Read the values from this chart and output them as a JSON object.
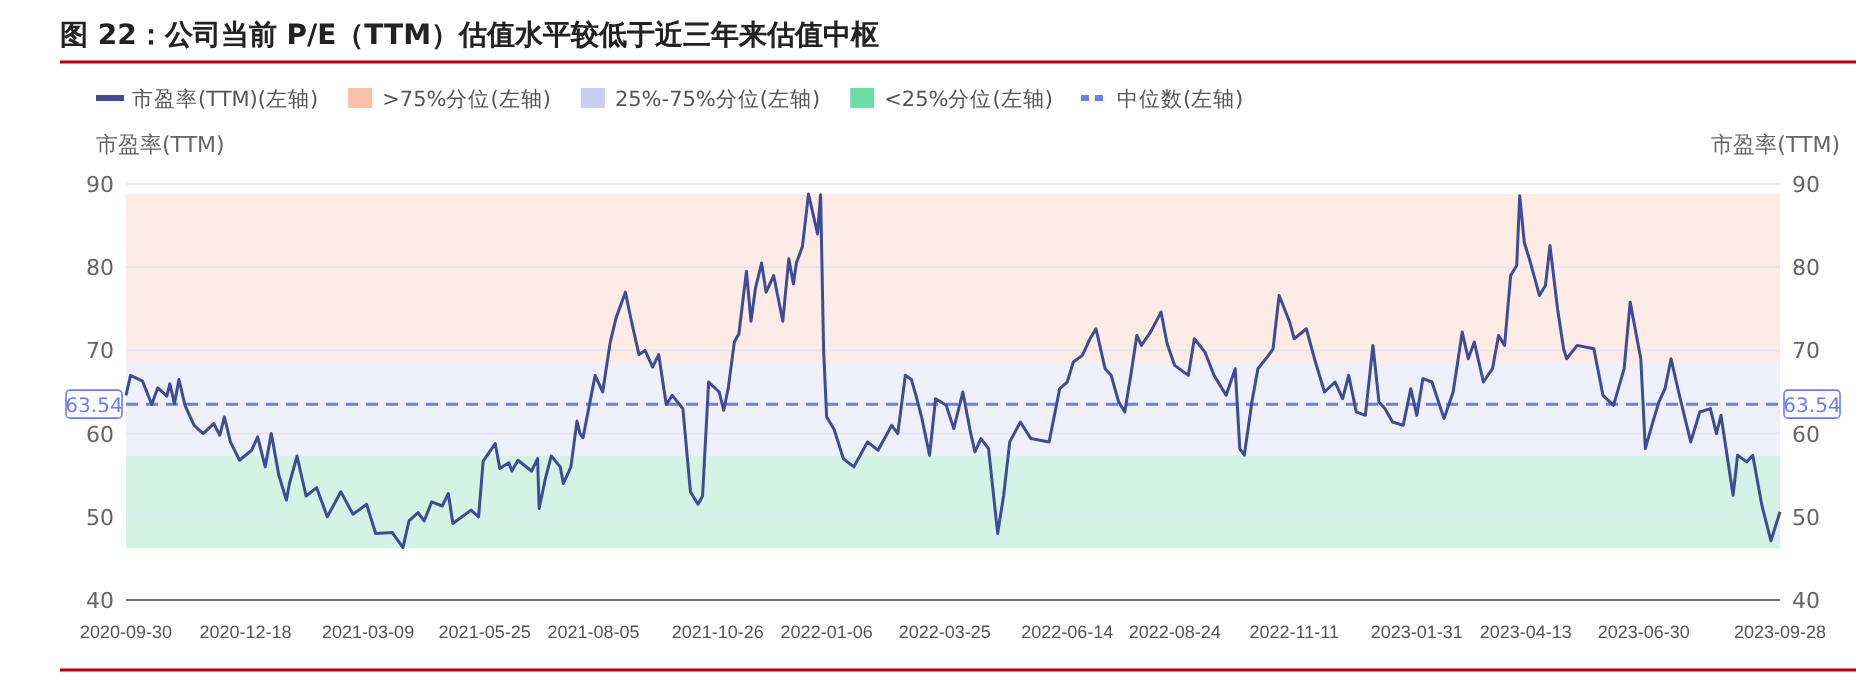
{
  "chart_data": {
    "type": "line",
    "title": "图 22：公司当前 P/E（TTM）估值水平较低于近三年来估值中枢",
    "ylabel": "市盈率(TTM)",
    "y2label": "市盈率(TTM)",
    "xlim": [
      "2020-09-30",
      "2023-09-28"
    ],
    "xticks": [
      {
        "value": "2020-09-30",
        "label": "2020-09-30"
      },
      {
        "value": "2020-12-18",
        "label": "2020-12-18"
      },
      {
        "value": "2021-03-09",
        "label": "2021-03-09"
      },
      {
        "value": "2021-05-25",
        "label": "2021-05-25"
      },
      {
        "value": "2021-08-05",
        "label": "2021-08-05"
      },
      {
        "value": "2021-10-26",
        "label": "2021-10-26"
      },
      {
        "value": "2022-01-06",
        "label": "2022-01-06"
      },
      {
        "value": "2022-03-25",
        "label": "2022-03-25"
      },
      {
        "value": "2022-06-14",
        "label": "2022-06-14"
      },
      {
        "value": "2022-08-24",
        "label": "2022-08-24"
      },
      {
        "value": "2022-11-11",
        "label": "2022-11-11"
      },
      {
        "value": "2023-01-31",
        "label": "2023-01-31"
      },
      {
        "value": "2023-04-13",
        "label": "2023-04-13"
      },
      {
        "value": "2023-06-30",
        "label": "2023-06-30"
      },
      {
        "value": "2023-09-28",
        "label": "2023-09-28"
      }
    ],
    "ylim": [
      40,
      90
    ],
    "yticks": [
      40,
      50,
      60,
      70,
      80,
      90
    ],
    "y2lim": [
      40,
      90
    ],
    "y2ticks": [
      40,
      50,
      60,
      70,
      80,
      90
    ],
    "grid": "y",
    "legend": "top",
    "line_style": "solid",
    "marker": "none",
    "series": [
      {
        "name": "市盈率(TTM)(左轴)",
        "color": "#3d4c94",
        "x": [
          "2020-09-30",
          "2020-10-03",
          "2020-10-11",
          "2020-10-17",
          "2020-10-21",
          "2020-10-27",
          "2020-10-29",
          "2020-11-01",
          "2020-11-04",
          "2020-11-08",
          "2020-11-14",
          "2020-11-20",
          "2020-11-27",
          "2020-12-01",
          "2020-12-04",
          "2020-12-08",
          "2020-12-14",
          "2020-12-22",
          "2020-12-26",
          "2020-12-31",
          "2021-01-04",
          "2021-01-09",
          "2021-01-14",
          "2021-01-16",
          "2021-01-21",
          "2021-01-27",
          "2021-02-03",
          "2021-02-10",
          "2021-02-19",
          "2021-02-27",
          "2021-03-08",
          "2021-03-14",
          "2021-03-25",
          "2021-04-01",
          "2021-04-05",
          "2021-04-11",
          "2021-04-15",
          "2021-04-20",
          "2021-04-27",
          "2021-05-01",
          "2021-05-04",
          "2021-05-16",
          "2021-05-21",
          "2021-05-24",
          "2021-06-01",
          "2021-06-04",
          "2021-06-10",
          "2021-06-12",
          "2021-06-16",
          "2021-06-25",
          "2021-06-29",
          "2021-06-30",
          "2021-07-04",
          "2021-07-08",
          "2021-07-14",
          "2021-07-16",
          "2021-07-21",
          "2021-07-25",
          "2021-07-27",
          "2021-07-29",
          "2021-08-06",
          "2021-08-11",
          "2021-08-16",
          "2021-08-20",
          "2021-08-26",
          "2021-08-30",
          "2021-09-04",
          "2021-09-08",
          "2021-09-13",
          "2021-09-17",
          "2021-09-22",
          "2021-09-26",
          "2021-10-03",
          "2021-10-08",
          "2021-10-13",
          "2021-10-16",
          "2021-10-20",
          "2021-10-27",
          "2021-10-30",
          "2021-11-02",
          "2021-11-06",
          "2021-11-09",
          "2021-11-14",
          "2021-11-17",
          "2021-11-20",
          "2021-11-24",
          "2021-11-27",
          "2021-12-02",
          "2021-12-08",
          "2021-12-12",
          "2021-12-15",
          "2021-12-17",
          "2021-12-21",
          "2021-12-25",
          "2021-12-31",
          "2022-01-02",
          "2022-01-04",
          "2022-01-06",
          "2022-01-11",
          "2022-01-17",
          "2022-01-24",
          "2022-02-02",
          "2022-02-09",
          "2022-02-18",
          "2022-02-22",
          "2022-02-27",
          "2022-03-03",
          "2022-03-06",
          "2022-03-10",
          "2022-03-15",
          "2022-03-19",
          "2022-03-26",
          "2022-03-31",
          "2022-04-06",
          "2022-04-11",
          "2022-04-14",
          "2022-04-18",
          "2022-04-23",
          "2022-04-29",
          "2022-05-03",
          "2022-05-07",
          "2022-05-14",
          "2022-05-21",
          "2022-06-02",
          "2022-06-09",
          "2022-06-14",
          "2022-06-18",
          "2022-06-24",
          "2022-06-29",
          "2022-07-03",
          "2022-07-09",
          "2022-07-13",
          "2022-07-18",
          "2022-07-22",
          "2022-07-26",
          "2022-07-30",
          "2022-08-02",
          "2022-08-08",
          "2022-08-15",
          "2022-08-19",
          "2022-08-24",
          "2022-09-02",
          "2022-09-06",
          "2022-09-13",
          "2022-09-19",
          "2022-09-27",
          "2022-10-03",
          "2022-10-06",
          "2022-10-09",
          "2022-10-14",
          "2022-10-18",
          "2022-10-25",
          "2022-10-28",
          "2022-11-01",
          "2022-11-08",
          "2022-11-11",
          "2022-11-19",
          "2022-11-25",
          "2022-12-01",
          "2022-12-08",
          "2022-12-13",
          "2022-12-17",
          "2022-12-22",
          "2022-12-28",
          "2023-01-02",
          "2023-01-06",
          "2023-01-10",
          "2023-01-15",
          "2023-01-22",
          "2023-01-27",
          "2023-01-31",
          "2023-02-04",
          "2023-02-10",
          "2023-02-18",
          "2023-02-24",
          "2023-03-02",
          "2023-03-06",
          "2023-03-10",
          "2023-03-16",
          "2023-03-22",
          "2023-03-26",
          "2023-03-30",
          "2023-04-03",
          "2023-04-07",
          "2023-04-09",
          "2023-04-12",
          "2023-04-16",
          "2023-04-22",
          "2023-04-26",
          "2023-04-29",
          "2023-05-04",
          "2023-05-08",
          "2023-05-10",
          "2023-05-17",
          "2023-05-28",
          "2023-06-03",
          "2023-06-10",
          "2023-06-17",
          "2023-06-21",
          "2023-06-28",
          "2023-07-01",
          "2023-07-06",
          "2023-07-10",
          "2023-07-14",
          "2023-07-18",
          "2023-07-23",
          "2023-07-31",
          "2023-08-06",
          "2023-08-13",
          "2023-08-17",
          "2023-08-20",
          "2023-08-28",
          "2023-08-31",
          "2023-09-06",
          "2023-09-10",
          "2023-09-16",
          "2023-09-22",
          "2023-09-28"
        ],
        "values": [
          64.6,
          67,
          66.3,
          63.5,
          65.5,
          64.5,
          66,
          63.6,
          66.5,
          63.4,
          61,
          60,
          61.2,
          59.8,
          62,
          59,
          56.8,
          58,
          59.6,
          56,
          60,
          55,
          52,
          54,
          57.3,
          52.5,
          53.5,
          50,
          53,
          50.3,
          51.5,
          48,
          48.1,
          46.3,
          49.5,
          50.5,
          49.5,
          51.8,
          51.3,
          52.8,
          49.2,
          50.8,
          50,
          56.7,
          58.8,
          55.8,
          56.5,
          55.5,
          56.8,
          55.5,
          57,
          51,
          54.5,
          57.3,
          56,
          54,
          56,
          61.5,
          60,
          59.5,
          67,
          65,
          71,
          74,
          77,
          73.5,
          69.5,
          70,
          68,
          69.5,
          63.5,
          64.6,
          63,
          53,
          51.5,
          52.5,
          66.2,
          65,
          62.8,
          65.5,
          71,
          72,
          79.5,
          73.5,
          77.5,
          80.5,
          77,
          79,
          73.5,
          81,
          78,
          80.5,
          82.5,
          88.8,
          84,
          88.7,
          70,
          62,
          60.5,
          57,
          56,
          59,
          58,
          61,
          60,
          67,
          66.5,
          64.6,
          61.8,
          57.4,
          64.2,
          63.4,
          60.6,
          65,
          60.2,
          57.8,
          59.4,
          58.2,
          48,
          52.6,
          59,
          61.4,
          59.4,
          59,
          65.4,
          66.2,
          68.6,
          69.4,
          71.4,
          72.6,
          67.8,
          67,
          63.8,
          62.6,
          67,
          71.8,
          70.6,
          72.2,
          74.6,
          70.8,
          68.2,
          67,
          71.4,
          69.8,
          67,
          64.6,
          67.8,
          58.2,
          57.4,
          63.8,
          67.8,
          69.4,
          70.2,
          76.6,
          73.4,
          71.4,
          72.6,
          68.6,
          65,
          66.2,
          64.2,
          67,
          62.6,
          62.2,
          70.6,
          63.8,
          63,
          61.4,
          61,
          65.4,
          62.2,
          66.6,
          66.2,
          61.8,
          65,
          72.2,
          69,
          71,
          66.2,
          67.8,
          71.8,
          70.6,
          79,
          80.2,
          88.6,
          83,
          80.6,
          76.6,
          77.8,
          82.6,
          75,
          70.2,
          69,
          70.6,
          70.2,
          64.6,
          63.4,
          67.8,
          75.8,
          69,
          58.2,
          61.4,
          63.8,
          65.4,
          69,
          65,
          59,
          62.6,
          63,
          60,
          62.2,
          52.6,
          57.4,
          56.6,
          57.4,
          51.4,
          47.1,
          50.6
        ]
      }
    ],
    "bands": [
      {
        "axis": "y",
        "from": 68.6,
        "to": 88.8,
        "label": ">75%分位(左轴)",
        "color": "#f9bfa9"
      },
      {
        "axis": "y",
        "from": 57.3,
        "to": 68.6,
        "label": "25%-75%分位(左轴)",
        "color": "#c8cdf2"
      },
      {
        "axis": "y",
        "from": 46.2,
        "to": 57.3,
        "label": "<25%分位(左轴)",
        "color": "#6ddba5"
      }
    ],
    "ref_lines": [
      {
        "axis": "y",
        "value": 63.54,
        "label": "中位数(左轴)",
        "color": "#6b7cf5",
        "line_style": "dashed"
      }
    ],
    "annotations": [
      {
        "text": "63.54",
        "x": "2020-09-30",
        "y": 63.54
      },
      {
        "text": "63.54",
        "x": "2023-09-28",
        "y": 63.54
      }
    ]
  }
}
